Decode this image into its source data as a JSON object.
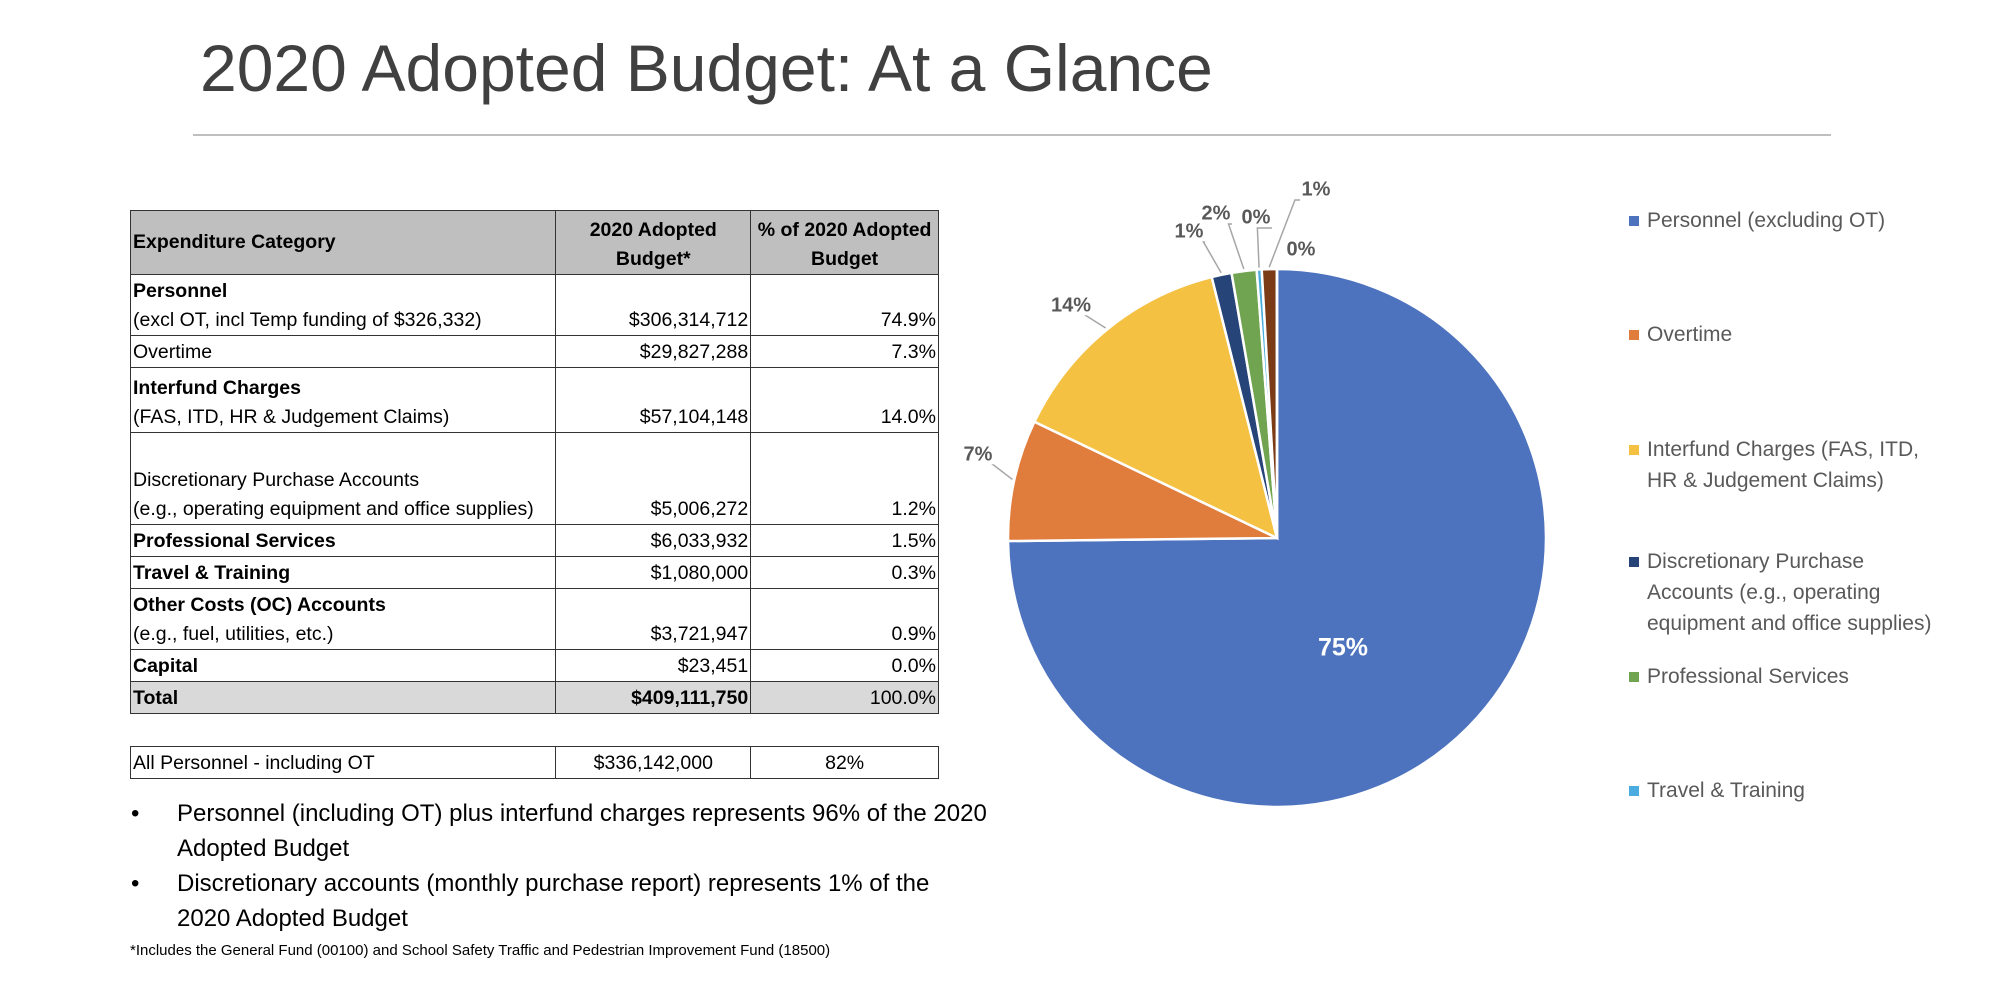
{
  "header": {
    "title": "2020 Adopted Budget: At a Glance"
  },
  "table": {
    "columns": [
      "Expenditure Category",
      "2020 Adopted Budget*",
      "% of 2020 Adopted Budget"
    ],
    "rows": [
      {
        "category": "Personnel",
        "detail": "(excl OT, incl Temp funding of $326,332)",
        "budget": "$306,314,712",
        "percent": "74.9%"
      },
      {
        "category": "Overtime",
        "budget": "$29,827,288",
        "percent": "7.3%"
      },
      {
        "category": "Interfund Charges",
        "detail": "(FAS, ITD, HR & Judgement Claims)",
        "budget": "$57,104,148",
        "percent": "14.0%"
      },
      {
        "category": "Discretionary Purchase Accounts",
        "detail": "(e.g., operating equipment and office supplies)",
        "budget": "$5,006,272",
        "percent": "1.2%"
      },
      {
        "category": "Professional Services",
        "budget": "$6,033,932",
        "percent": "1.5%"
      },
      {
        "category": "Travel & Training",
        "budget": "$1,080,000",
        "percent": "0.3%"
      },
      {
        "category": "Other Costs (OC) Accounts",
        "detail": "(e.g., fuel, utilities, etc.)",
        "budget": "$3,721,947",
        "percent": "0.9%"
      },
      {
        "category": "Capital",
        "budget": "$23,451",
        "percent": "0.0%"
      },
      {
        "category": "Total",
        "budget": "$409,111,750",
        "percent": "100.0%"
      }
    ]
  },
  "summary": {
    "category": "All Personnel - including OT",
    "budget": "$336,142,000",
    "percent": "82%"
  },
  "bullets": [
    "Personnel (including OT) plus interfund charges represents 96% of the 2020 Adopted Budget",
    "Discretionary accounts (monthly purchase report) represents 1% of the 2020 Adopted Budget"
  ],
  "footnote": "*Includes the General Fund (00100) and School Safety Traffic and Pedestrian Improvement Fund (18500)",
  "chart_data": {
    "type": "pie",
    "categories": [
      "Personnel (excluding OT)",
      "Overtime",
      "Interfund Charges (FAS, ITD, HR & Judgement Claims)",
      "Discretionary Purchase Accounts (e.g., operating equipment and office supplies)",
      "Professional Services",
      "Travel & Training",
      null,
      null
    ],
    "values": [
      74.9,
      7.3,
      14.0,
      1.2,
      1.5,
      0.3,
      0.9,
      0.006
    ],
    "value_labels": [
      "75%",
      "7%",
      "14%",
      "1%",
      "2%",
      "0%",
      "1%",
      "0%"
    ],
    "colors": [
      "#4e73be",
      "#e07d3d",
      "#f4c142",
      "#264478",
      "#70a450",
      "#4aacdf",
      "#7b3b17",
      "#8c8c8c"
    ]
  }
}
